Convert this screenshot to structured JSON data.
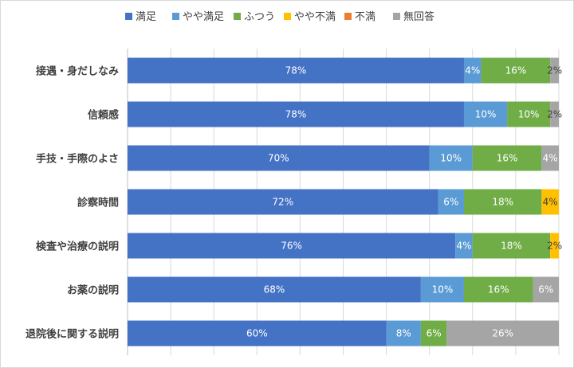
{
  "chart_data": {
    "type": "bar",
    "orientation": "horizontal",
    "stacked": "percent",
    "categories": [
      "接遇・身だしなみ",
      "信頼感",
      "手技・手際のよさ",
      "診察時間",
      "検査や治療の説明",
      "お薬の説明",
      "退院後に関する説明"
    ],
    "series": [
      {
        "name": "満足",
        "color": "#4472C4",
        "values": [
          78,
          78,
          70,
          72,
          76,
          68,
          60
        ],
        "labels": [
          "78%",
          "78%",
          "70%",
          "72%",
          "76%",
          "68%",
          "60%"
        ]
      },
      {
        "name": "やや満足",
        "color": "#5B9BD5",
        "values": [
          4,
          10,
          10,
          6,
          4,
          10,
          8
        ],
        "labels": [
          "4%",
          "10%",
          "10%",
          "6%",
          "4%",
          "10%",
          "8%"
        ]
      },
      {
        "name": "ふつう",
        "color": "#70AD47",
        "values": [
          16,
          10,
          16,
          18,
          18,
          16,
          6
        ],
        "labels": [
          "16%",
          "10%",
          "16%",
          "18%",
          "18%",
          "16%",
          "6%"
        ]
      },
      {
        "name": "やや不満",
        "color": "#FFC000",
        "values": [
          0,
          0,
          0,
          4,
          2,
          0,
          0
        ],
        "labels": [
          "",
          "",
          "",
          "4%",
          "2%",
          "",
          ""
        ]
      },
      {
        "name": "不満",
        "color": "#ED7D31",
        "values": [
          0,
          0,
          0,
          0,
          0,
          0,
          0
        ],
        "labels": [
          "",
          "",
          "",
          "",
          "",
          "",
          ""
        ]
      },
      {
        "name": "無回答",
        "color": "#A5A5A5",
        "values": [
          2,
          2,
          4,
          0,
          0,
          6,
          26
        ],
        "labels": [
          "2%",
          "2%",
          "4%",
          "",
          "",
          "6%",
          "26%"
        ]
      }
    ],
    "xlim": [
      0,
      100
    ],
    "grid": true,
    "legend": "top"
  }
}
